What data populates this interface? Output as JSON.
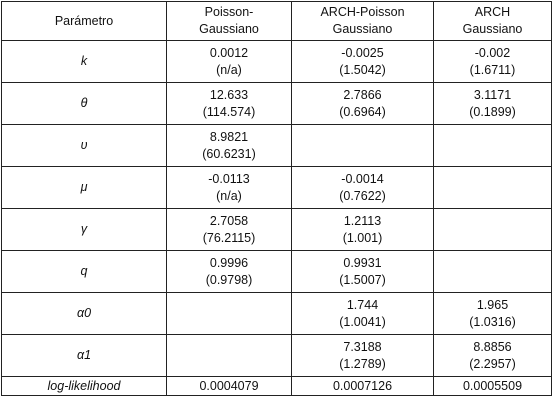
{
  "table": {
    "headers": [
      "Parámetro",
      "Poisson-\nGaussiano",
      "ARCH-Poisson\nGaussiano",
      "ARCH\nGaussiano"
    ],
    "rows": [
      {
        "param": "k",
        "cells": [
          {
            "value": "0.0012",
            "se": "(n/a)"
          },
          {
            "value": "-0.0025",
            "se": "(1.5042)"
          },
          {
            "value": "-0.002",
            "se": "(1.6711)"
          }
        ]
      },
      {
        "param": "θ",
        "cells": [
          {
            "value": "12.633",
            "se": "(114.574)"
          },
          {
            "value": "2.7866",
            "se": "(0.6964)"
          },
          {
            "value": "3.1171",
            "se": "(0.1899)"
          }
        ]
      },
      {
        "param": "υ",
        "cells": [
          {
            "value": "8.9821",
            "se": "(60.6231)"
          },
          {
            "value": "",
            "se": ""
          },
          {
            "value": "",
            "se": ""
          }
        ]
      },
      {
        "param": "μ",
        "cells": [
          {
            "value": "-0.0113",
            "se": "(n/a)"
          },
          {
            "value": "-0.0014",
            "se": "(0.7622)"
          },
          {
            "value": "",
            "se": ""
          }
        ]
      },
      {
        "param": "γ",
        "cells": [
          {
            "value": "2.7058",
            "se": "(76.2115)"
          },
          {
            "value": "1.2113",
            "se": "(1.001)"
          },
          {
            "value": "",
            "se": ""
          }
        ]
      },
      {
        "param": "q",
        "cells": [
          {
            "value": "0.9996",
            "se": "(0.9798)"
          },
          {
            "value": "0.9931",
            "se": "(1.5007)"
          },
          {
            "value": "",
            "se": ""
          }
        ]
      },
      {
        "param": "α0",
        "cells": [
          {
            "value": "",
            "se": ""
          },
          {
            "value": "1.744",
            "se": "(1.0041)"
          },
          {
            "value": "1.965",
            "se": "(1.0316)"
          }
        ]
      },
      {
        "param": "α1",
        "cells": [
          {
            "value": "",
            "se": ""
          },
          {
            "value": "7.3188",
            "se": "(1.2789)"
          },
          {
            "value": "8.8856",
            "se": "(2.2957)"
          }
        ]
      }
    ],
    "footer": {
      "param": "log-likelihood",
      "values": [
        "0.0004079",
        "0.0007126",
        "0.0005509"
      ]
    }
  }
}
